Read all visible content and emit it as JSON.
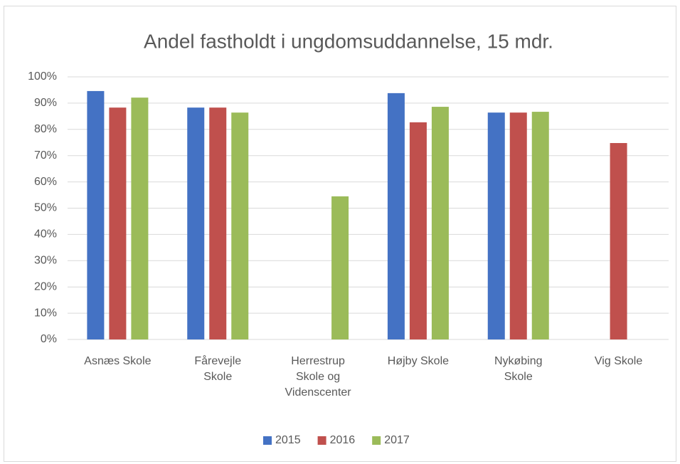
{
  "chart_data": {
    "type": "bar",
    "title": "Andel fastholdt i ungdomsuddannelse,  15 mdr.",
    "categories": [
      "Asnæs Skole",
      "Fårevejle Skole",
      "Herrestrup Skole og Videnscenter",
      "Højby Skole",
      "Nykøbing Skole",
      "Vig Skole"
    ],
    "series": [
      {
        "name": "2015",
        "color": "#4472c4",
        "values": [
          94.6,
          88.3,
          null,
          93.8,
          86.4,
          null
        ]
      },
      {
        "name": "2016",
        "color": "#c0504d",
        "values": [
          88.3,
          88.3,
          null,
          82.7,
          86.4,
          74.8
        ]
      },
      {
        "name": "2017",
        "color": "#9bbb59",
        "values": [
          92.1,
          86.4,
          54.5,
          88.6,
          86.7,
          null
        ]
      }
    ],
    "ylim": [
      0,
      100
    ],
    "yticks": [
      {
        "value": 0,
        "label": "0%"
      },
      {
        "value": 10,
        "label": "10%"
      },
      {
        "value": 20,
        "label": "20%"
      },
      {
        "value": 30,
        "label": "30%"
      },
      {
        "value": 40,
        "label": "40%"
      },
      {
        "value": 50,
        "label": "50%"
      },
      {
        "value": 60,
        "label": "60%"
      },
      {
        "value": 70,
        "label": "70%"
      },
      {
        "value": 80,
        "label": "80%"
      },
      {
        "value": 90,
        "label": "90%"
      },
      {
        "value": 100,
        "label": "100%"
      }
    ],
    "grid": true,
    "legend": "bottom"
  }
}
